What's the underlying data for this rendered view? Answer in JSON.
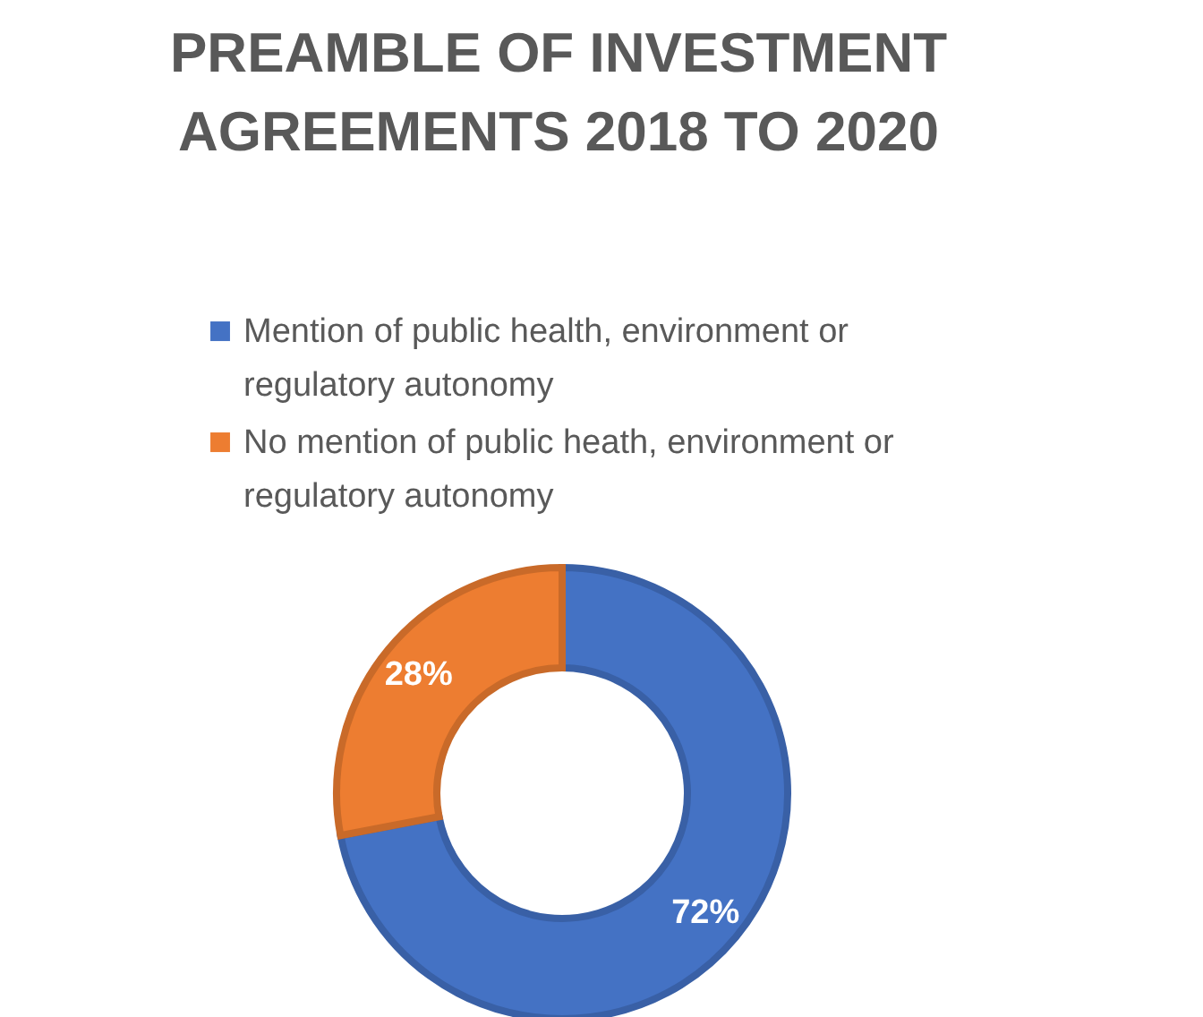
{
  "chart_data": {
    "type": "donut",
    "title": "PREAMBLE OF INVESTMENT AGREEMENTS 2018 TO 2020",
    "categories": [
      "Mention of public health, environment or regulatory autonomy",
      "No mention of public heath, environment or regulatory autonomy"
    ],
    "values": [
      72,
      28
    ],
    "colors": [
      "#4472c4",
      "#ed7d31"
    ],
    "value_labels": [
      "72%",
      "28%"
    ],
    "legend": "top"
  }
}
